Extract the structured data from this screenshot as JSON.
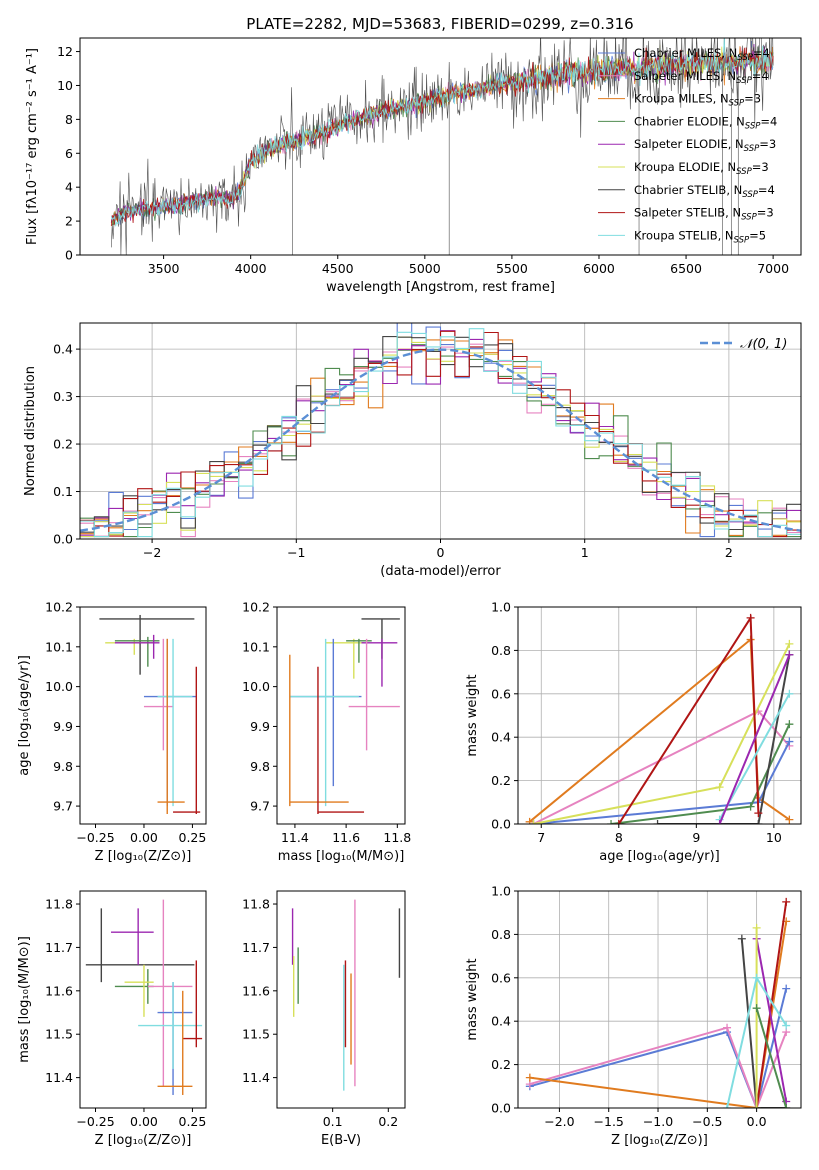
{
  "figure": {
    "title": "PLATE=2282, MJD=53683, FIBERID=0299, z=0.316"
  },
  "chart_data": [
    {
      "id": "spectrum",
      "type": "line",
      "xlabel": "wavelength [Angstrom, rest frame]",
      "ylabel": "Flux [fλ10⁻¹⁷ erg cm⁻² s⁻¹ A⁻¹]",
      "xlim": [
        3020,
        7160
      ],
      "ylim": [
        0,
        12.8
      ],
      "xticks": [
        3500,
        4000,
        4500,
        5000,
        5500,
        6000,
        6500,
        7000
      ],
      "yticks": [
        0,
        2,
        4,
        6,
        8,
        10,
        12
      ],
      "grid": false,
      "legend_position": "top-right",
      "continuum": {
        "x": [
          3200,
          3300,
          3400,
          3500,
          3600,
          3700,
          3800,
          3900,
          3950,
          4000,
          4100,
          4200,
          4300,
          4400,
          4500,
          4600,
          4700,
          4800,
          4900,
          5000,
          5100,
          5200,
          5300,
          5400,
          5500,
          5600,
          5700,
          5800,
          5900,
          6000,
          6100,
          6200,
          6300,
          6400,
          6500,
          6600,
          6700,
          6800,
          6900,
          7000
        ],
        "y": [
          2.0,
          2.6,
          2.7,
          2.8,
          3.0,
          3.2,
          3.4,
          3.3,
          4.0,
          5.5,
          6.2,
          6.6,
          6.8,
          7.2,
          7.6,
          8.0,
          8.3,
          8.6,
          8.8,
          9.1,
          9.3,
          9.6,
          9.8,
          10.0,
          10.2,
          10.4,
          10.5,
          10.7,
          10.8,
          10.9,
          11.0,
          11.0,
          11.1,
          11.2,
          11.2,
          11.3,
          11.3,
          11.4,
          11.5,
          11.5
        ]
      },
      "series": [
        {
          "name": "Chabrier MILES, N",
          "sub": "SSP",
          "n": "=4",
          "color": "#5b7bd5"
        },
        {
          "name": "Salpeter MILES, N",
          "sub": "SSP",
          "n": "=4",
          "color": "#e683c0"
        },
        {
          "name": "Kroupa MILES, N",
          "sub": "SSP",
          "n": "=3",
          "color": "#e07b1f"
        },
        {
          "name": "Chabrier ELODIE, N",
          "sub": "SSP",
          "n": "=4",
          "color": "#4f8c4f"
        },
        {
          "name": "Salpeter ELODIE, N",
          "sub": "SSP",
          "n": "=3",
          "color": "#9b27b0"
        },
        {
          "name": "Kroupa ELODIE, N",
          "sub": "SSP",
          "n": "=3",
          "color": "#d7e05a"
        },
        {
          "name": "Chabrier STELIB, N",
          "sub": "SSP",
          "n": "=4",
          "color": "#444444"
        },
        {
          "name": "Salpeter STELIB, N",
          "sub": "SSP",
          "n": "=3",
          "color": "#b01515"
        },
        {
          "name": "Kroupa STELIB, N",
          "sub": "SSP",
          "n": "=5",
          "color": "#80dde0"
        }
      ]
    },
    {
      "id": "residuals",
      "type": "histogram",
      "xlabel": "(data-model)/error",
      "ylabel": "Normed distribution",
      "xlim": [
        -2.5,
        2.5
      ],
      "ylim": [
        0,
        0.455
      ],
      "xticks": [
        -2,
        -1,
        0,
        1,
        2
      ],
      "yticks": [
        0.0,
        0.1,
        0.2,
        0.3,
        0.4
      ],
      "grid": true,
      "legend_position": "top-right",
      "legend": "𝒩(0, 1)",
      "gaussian": {
        "mean": 0,
        "sigma": 1,
        "color": "#5b8fd5"
      },
      "bin_width": 0.1
    },
    {
      "id": "age-vs-Z",
      "type": "scatter",
      "xlabel": "Z [log₁₀(Z/Z⊙)]",
      "ylabel": "age  [log₁₀(age/yr)]",
      "xlim": [
        -0.33,
        0.32
      ],
      "ylim": [
        9.655,
        10.2
      ],
      "xticks": [
        -0.25,
        0.0,
        0.25
      ],
      "yticks": [
        9.7,
        9.8,
        9.9,
        10.0,
        10.1,
        10.2
      ],
      "points": [
        {
          "x": -0.02,
          "xlo": -0.23,
          "xhi": 0.26,
          "y": 10.17,
          "ylo": 10.03,
          "yhi": 10.18,
          "color": "#444444"
        },
        {
          "x": -0.05,
          "xlo": -0.2,
          "xhi": 0.05,
          "y": 10.11,
          "ylo": 10.08,
          "yhi": 10.12,
          "color": "#d7e05a"
        },
        {
          "x": 0.02,
          "xlo": -0.15,
          "xhi": 0.08,
          "y": 10.115,
          "ylo": 10.05,
          "yhi": 10.125,
          "color": "#4f8c4f"
        },
        {
          "x": 0.12,
          "xlo": 0.0,
          "xhi": 0.27,
          "y": 9.975,
          "ylo": 9.7,
          "yhi": 10.12,
          "color": "#5b7bd5"
        },
        {
          "x": 0.1,
          "xlo": 0.0,
          "xhi": 0.15,
          "y": 9.95,
          "ylo": 9.84,
          "yhi": 10.12,
          "color": "#e683c0"
        },
        {
          "x": 0.15,
          "xlo": 0.07,
          "xhi": 0.25,
          "y": 9.975,
          "ylo": 9.7,
          "yhi": 10.12,
          "color": "#80dde0"
        },
        {
          "x": 0.12,
          "xlo": 0.07,
          "xhi": 0.21,
          "y": 9.71,
          "ylo": 9.68,
          "yhi": 10.12,
          "color": "#e07b1f"
        },
        {
          "x": 0.27,
          "xlo": 0.15,
          "xhi": 0.29,
          "y": 9.685,
          "ylo": 9.68,
          "yhi": 10.05,
          "color": "#b01515"
        },
        {
          "x": 0.05,
          "xlo": -0.15,
          "xhi": 0.08,
          "y": 10.11,
          "ylo": 10.07,
          "yhi": 10.13,
          "color": "#9b27b0"
        }
      ]
    },
    {
      "id": "age-vs-mass",
      "type": "scatter",
      "xlabel": "mass [log₁₀(M/M⊙)]",
      "ylabel": "",
      "xlim": [
        11.33,
        11.83
      ],
      "ylim": [
        9.655,
        10.2
      ],
      "xticks": [
        11.4,
        11.6,
        11.8
      ],
      "yticks": [
        9.7,
        9.8,
        9.9,
        10.0,
        10.1,
        10.2
      ],
      "points": [
        {
          "x": 11.74,
          "xlo": 11.66,
          "xhi": 11.81,
          "y": 10.17,
          "ylo": 10.07,
          "yhi": 10.17,
          "color": "#444444"
        },
        {
          "x": 11.63,
          "xlo": 11.52,
          "xhi": 11.67,
          "y": 10.11,
          "ylo": 10.02,
          "yhi": 10.12,
          "color": "#d7e05a"
        },
        {
          "x": 11.65,
          "xlo": 11.6,
          "xhi": 11.7,
          "y": 10.115,
          "ylo": 10.06,
          "yhi": 10.12,
          "color": "#4f8c4f"
        },
        {
          "x": 11.74,
          "xlo": 11.66,
          "xhi": 11.8,
          "y": 10.11,
          "ylo": 10.0,
          "yhi": 10.12,
          "color": "#9b27b0"
        },
        {
          "x": 11.55,
          "xlo": 11.38,
          "xhi": 11.66,
          "y": 9.975,
          "ylo": 9.75,
          "yhi": 10.12,
          "color": "#5b7bd5"
        },
        {
          "x": 11.68,
          "xlo": 11.61,
          "xhi": 11.81,
          "y": 9.95,
          "ylo": 9.84,
          "yhi": 10.12,
          "color": "#e683c0"
        },
        {
          "x": 11.52,
          "xlo": 11.38,
          "xhi": 11.65,
          "y": 9.975,
          "ylo": 9.7,
          "yhi": 10.12,
          "color": "#80dde0"
        },
        {
          "x": 11.38,
          "xlo": 11.38,
          "xhi": 11.61,
          "y": 9.71,
          "ylo": 9.7,
          "yhi": 10.08,
          "color": "#e07b1f"
        },
        {
          "x": 11.49,
          "xlo": 11.49,
          "xhi": 11.67,
          "y": 9.685,
          "ylo": 9.68,
          "yhi": 10.05,
          "color": "#b01515"
        }
      ]
    },
    {
      "id": "weight-vs-age",
      "type": "line",
      "xlabel": "age  [log₁₀(age/yr)]",
      "ylabel": "mass weight",
      "xlim": [
        6.7,
        10.35
      ],
      "ylim": [
        0,
        1.0
      ],
      "xticks": [
        7,
        8,
        9,
        10
      ],
      "yticks": [
        0.0,
        0.2,
        0.4,
        0.6,
        0.8,
        1.0
      ],
      "grid": true,
      "series": [
        {
          "color": "#e07b1f",
          "x": [
            6.85,
            9.7,
            9.8,
            10.2
          ],
          "y": [
            0.01,
            0.85,
            0.12,
            0.02
          ]
        },
        {
          "color": "#e683c0",
          "x": [
            6.9,
            9.8,
            10.2
          ],
          "y": [
            0.0,
            0.52,
            0.36
          ]
        },
        {
          "color": "#5b7bd5",
          "x": [
            6.9,
            9.8,
            10.2
          ],
          "y": [
            0.0,
            0.1,
            0.38
          ]
        },
        {
          "color": "#d7e05a",
          "x": [
            6.9,
            9.3,
            10.2
          ],
          "y": [
            0.0,
            0.17,
            0.83
          ]
        },
        {
          "color": "#4f8c4f",
          "x": [
            7.9,
            9.7,
            10.2
          ],
          "y": [
            0.0,
            0.08,
            0.46
          ]
        },
        {
          "color": "#444444",
          "x": [
            8.5,
            9.8,
            10.2
          ],
          "y": [
            0.0,
            0.0,
            0.78
          ]
        },
        {
          "color": "#b01515",
          "x": [
            8.0,
            9.7,
            9.8
          ],
          "y": [
            0.0,
            0.95,
            0.05
          ]
        },
        {
          "color": "#80dde0",
          "x": [
            9.3,
            10.2
          ],
          "y": [
            0.02,
            0.6
          ]
        },
        {
          "color": "#9b27b0",
          "x": [
            9.3,
            10.2
          ],
          "y": [
            0.0,
            0.78
          ]
        }
      ]
    },
    {
      "id": "mass-vs-Z",
      "type": "scatter",
      "xlabel": "Z [log₁₀(Z/Z⊙)]",
      "ylabel": "mass [log₁₀(M/M⊙)]",
      "xlim": [
        -0.33,
        0.32
      ],
      "ylim": [
        11.33,
        11.83
      ],
      "xticks": [
        -0.25,
        0.0,
        0.25
      ],
      "yticks": [
        11.4,
        11.5,
        11.6,
        11.7,
        11.8
      ],
      "points": [
        {
          "x": -0.22,
          "xlo": -0.3,
          "xhi": 0.26,
          "y": 11.66,
          "ylo": 11.62,
          "yhi": 11.79,
          "color": "#444444"
        },
        {
          "x": -0.03,
          "xlo": -0.17,
          "xhi": 0.05,
          "y": 11.735,
          "ylo": 11.66,
          "yhi": 11.79,
          "color": "#9b27b0"
        },
        {
          "x": 0.02,
          "xlo": -0.15,
          "xhi": 0.05,
          "y": 11.61,
          "ylo": 11.57,
          "yhi": 11.65,
          "color": "#4f8c4f"
        },
        {
          "x": 0.0,
          "xlo": -0.1,
          "xhi": 0.05,
          "y": 11.62,
          "ylo": 11.54,
          "yhi": 11.66,
          "color": "#d7e05a"
        },
        {
          "x": 0.1,
          "xlo": 0.02,
          "xhi": 0.25,
          "y": 11.61,
          "ylo": 11.38,
          "yhi": 11.81,
          "color": "#e683c0"
        },
        {
          "x": 0.15,
          "xlo": 0.07,
          "xhi": 0.25,
          "y": 11.55,
          "ylo": 11.36,
          "yhi": 11.62,
          "color": "#5b7bd5"
        },
        {
          "x": 0.15,
          "xlo": -0.03,
          "xhi": 0.3,
          "y": 11.52,
          "ylo": 11.42,
          "yhi": 11.62,
          "color": "#80dde0"
        },
        {
          "x": 0.27,
          "xlo": 0.2,
          "xhi": 0.3,
          "y": 11.49,
          "ylo": 11.47,
          "yhi": 11.67,
          "color": "#b01515"
        },
        {
          "x": 0.2,
          "xlo": 0.07,
          "xhi": 0.25,
          "y": 11.38,
          "ylo": 11.36,
          "yhi": 11.6,
          "color": "#e07b1f"
        }
      ]
    },
    {
      "id": "mass-vs-ebv",
      "type": "scatter",
      "xlabel": "E(B-V)",
      "ylabel": "",
      "xlim": [
        0.0,
        0.23
      ],
      "ylim": [
        11.33,
        11.83
      ],
      "xticks": [
        0.1,
        0.2
      ],
      "yticks": [
        11.4,
        11.5,
        11.6,
        11.7,
        11.8
      ],
      "points": [
        {
          "x": 0.028,
          "ylo": 11.66,
          "yhi": 11.79,
          "color": "#9b27b0"
        },
        {
          "x": 0.03,
          "ylo": 11.54,
          "yhi": 11.68,
          "color": "#d7e05a"
        },
        {
          "x": 0.038,
          "ylo": 11.57,
          "yhi": 11.7,
          "color": "#4f8c4f"
        },
        {
          "x": 0.12,
          "ylo": 11.37,
          "yhi": 11.66,
          "color": "#80dde0"
        },
        {
          "x": 0.123,
          "ylo": 11.47,
          "yhi": 11.67,
          "color": "#b01515"
        },
        {
          "x": 0.133,
          "ylo": 11.43,
          "yhi": 11.64,
          "color": "#e07b1f"
        },
        {
          "x": 0.14,
          "ylo": 11.38,
          "yhi": 11.81,
          "color": "#e683c0"
        },
        {
          "x": 0.22,
          "ylo": 11.63,
          "yhi": 11.79,
          "color": "#444444"
        }
      ]
    },
    {
      "id": "weight-vs-Z",
      "type": "line",
      "xlabel": "Z [log₁₀(Z/Z⊙)]",
      "ylabel": "mass weight",
      "xlim": [
        -2.42,
        0.45
      ],
      "ylim": [
        0,
        1.0
      ],
      "xticks": [
        -2.0,
        -1.5,
        -1.0,
        -0.5,
        0.0
      ],
      "yticks": [
        0.0,
        0.2,
        0.4,
        0.6,
        0.8,
        1.0
      ],
      "grid": true,
      "series": [
        {
          "color": "#5b7bd5",
          "x": [
            -2.3,
            -0.3,
            0.0,
            0.3
          ],
          "y": [
            0.1,
            0.35,
            0.0,
            0.55
          ]
        },
        {
          "color": "#e683c0",
          "x": [
            -2.3,
            -0.3,
            0.0,
            0.3
          ],
          "y": [
            0.11,
            0.37,
            0.0,
            0.35
          ]
        },
        {
          "color": "#e07b1f",
          "x": [
            -2.3,
            0.0,
            0.3
          ],
          "y": [
            0.14,
            0.0,
            0.86
          ]
        },
        {
          "color": "#b01515",
          "x": [
            0.0,
            0.3
          ],
          "y": [
            0.0,
            0.95
          ]
        },
        {
          "color": "#444444",
          "x": [
            -0.15,
            0.0,
            0.3
          ],
          "y": [
            0.78,
            0.0,
            0.0
          ]
        },
        {
          "color": "#9b27b0",
          "x": [
            0.0,
            0.3
          ],
          "y": [
            0.78,
            0.03
          ]
        },
        {
          "color": "#d7e05a",
          "x": [
            0.0,
            0.0
          ],
          "y": [
            0.0,
            0.83
          ]
        },
        {
          "color": "#4f8c4f",
          "x": [
            0.0,
            0.3
          ],
          "y": [
            0.46,
            0.0
          ]
        },
        {
          "color": "#80dde0",
          "x": [
            -0.3,
            0.0,
            0.3
          ],
          "y": [
            0.0,
            0.6,
            0.38
          ]
        }
      ]
    }
  ]
}
